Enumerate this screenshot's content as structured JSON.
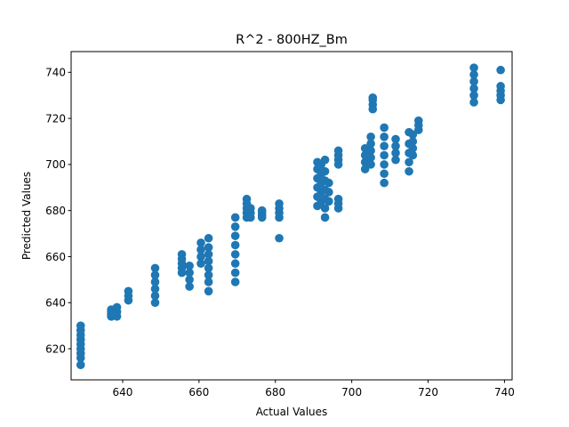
{
  "chart_data": {
    "type": "scatter",
    "title": "R^2 - 800HZ_Bm",
    "xlabel": "Actual Values",
    "ylabel": "Predicted Values",
    "xlim": [
      626.5,
      742
    ],
    "ylim": [
      606.5,
      749
    ],
    "x_ticks": [
      640,
      660,
      680,
      700,
      720,
      740
    ],
    "y_ticks": [
      620,
      640,
      660,
      680,
      700,
      720,
      740
    ],
    "grid": false,
    "legend": "none",
    "marker_color": "#1f77b4",
    "groups": [
      {
        "x": 629,
        "y": [
          613,
          616,
          618,
          620,
          622,
          624,
          626,
          628,
          630
        ]
      },
      {
        "x": 637,
        "y": [
          634,
          635,
          636,
          637
        ]
      },
      {
        "x": 638.5,
        "y": [
          634,
          636,
          638
        ]
      },
      {
        "x": 641.5,
        "y": [
          641,
          643,
          645
        ]
      },
      {
        "x": 648.5,
        "y": [
          640,
          643,
          646,
          649,
          652,
          655
        ]
      },
      {
        "x": 655.5,
        "y": [
          653,
          655,
          657,
          659,
          661
        ]
      },
      {
        "x": 657.5,
        "y": [
          647,
          650,
          653,
          656
        ]
      },
      {
        "x": 660.5,
        "y": [
          657,
          660,
          663,
          666
        ]
      },
      {
        "x": 662.5,
        "y": [
          645,
          649,
          652,
          655,
          658,
          661,
          664,
          668
        ]
      },
      {
        "x": 669.5,
        "y": [
          649,
          653,
          657,
          661,
          665,
          669,
          673,
          677
        ]
      },
      {
        "x": 672.5,
        "y": [
          677,
          679,
          681,
          683,
          685
        ]
      },
      {
        "x": 673.5,
        "y": [
          677,
          679,
          681
        ]
      },
      {
        "x": 676.5,
        "y": [
          677,
          678,
          679,
          680
        ]
      },
      {
        "x": 681,
        "y": [
          668,
          677,
          679,
          681,
          683
        ]
      },
      {
        "x": 691,
        "y": [
          682,
          686,
          690,
          694,
          698,
          701
        ]
      },
      {
        "x": 692,
        "y": [
          684,
          688,
          692,
          696,
          700
        ]
      },
      {
        "x": 693,
        "y": [
          677,
          681,
          685,
          689,
          693,
          697,
          702
        ]
      },
      {
        "x": 694,
        "y": [
          684,
          688,
          692
        ]
      },
      {
        "x": 696.5,
        "y": [
          681,
          683,
          685
        ]
      },
      {
        "x": 696.5,
        "y": [
          700,
          702,
          704,
          706
        ]
      },
      {
        "x": 703.5,
        "y": [
          698,
          701,
          704,
          707
        ]
      },
      {
        "x": 705,
        "y": [
          700,
          703,
          706,
          709,
          712
        ]
      },
      {
        "x": 705.5,
        "y": [
          724,
          726,
          728,
          729
        ]
      },
      {
        "x": 708.5,
        "y": [
          692,
          696,
          700,
          704,
          708,
          712,
          716
        ]
      },
      {
        "x": 711.5,
        "y": [
          702,
          705,
          708,
          711
        ]
      },
      {
        "x": 715,
        "y": [
          697,
          701,
          705,
          709,
          714
        ]
      },
      {
        "x": 716,
        "y": [
          704,
          707,
          710,
          713
        ]
      },
      {
        "x": 717.5,
        "y": [
          715,
          717,
          719
        ]
      },
      {
        "x": 732,
        "y": [
          727,
          730,
          733,
          736,
          739,
          742
        ]
      },
      {
        "x": 739,
        "y": [
          728,
          730,
          732,
          734,
          741
        ]
      }
    ]
  }
}
